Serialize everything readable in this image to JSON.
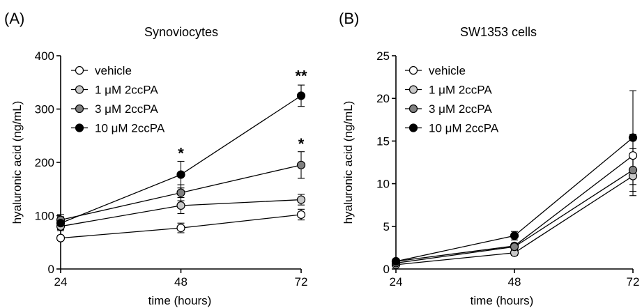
{
  "chart_data": [
    {
      "panel": "(A)",
      "type": "line",
      "title": "Synoviocytes",
      "xlabel": "time (hours)",
      "ylabel": "hyaluronic acid (ng/mL)",
      "x": [
        24,
        48,
        72
      ],
      "xticks": [
        24,
        48,
        72
      ],
      "ylim": [
        0,
        400
      ],
      "yticks": [
        0,
        100,
        200,
        300,
        400
      ],
      "grid": false,
      "legend": "top-left",
      "series": [
        {
          "name": "vehicle",
          "marker_fill": "#ffffff",
          "values": [
            58,
            77,
            102
          ],
          "errors": [
            5,
            9,
            10
          ]
        },
        {
          "name": "1 μM 2ccPA",
          "marker_fill": "#c8c8c8",
          "values": [
            80,
            119,
            130
          ],
          "errors": [
            8,
            15,
            10
          ]
        },
        {
          "name": "3 μM 2ccPA",
          "marker_fill": "#808080",
          "values": [
            92,
            143,
            195
          ],
          "errors": [
            10,
            15,
            25
          ]
        },
        {
          "name": "10 μM 2ccPA",
          "marker_fill": "#000000",
          "values": [
            86,
            177,
            325
          ],
          "errors": [
            12,
            25,
            20
          ]
        }
      ],
      "annotations": [
        {
          "x": 48,
          "y": 207,
          "text": "*"
        },
        {
          "x": 72,
          "y": 225,
          "text": "*"
        },
        {
          "x": 72,
          "y": 352,
          "text": "**"
        }
      ]
    },
    {
      "panel": "(B)",
      "type": "line",
      "title": "SW1353 cells",
      "xlabel": "time (hours)",
      "ylabel": "hyaluronic acid (ng/mL)",
      "x": [
        24,
        48,
        72
      ],
      "xticks": [
        24,
        48,
        72
      ],
      "ylim": [
        0,
        25
      ],
      "yticks": [
        0,
        5,
        10,
        15,
        20,
        25
      ],
      "grid": false,
      "legend": "top-left",
      "series": [
        {
          "name": "vehicle",
          "marker_fill": "#ffffff",
          "values": [
            0.9,
            2.7,
            13.3
          ],
          "errors": [
            0.2,
            0.3,
            2.5
          ]
        },
        {
          "name": "1 μM 2ccPA",
          "marker_fill": "#c8c8c8",
          "values": [
            0.5,
            1.9,
            10.9
          ],
          "errors": [
            0.2,
            0.3,
            2.3
          ]
        },
        {
          "name": "3 μM 2ccPA",
          "marker_fill": "#808080",
          "values": [
            0.7,
            2.6,
            11.6
          ],
          "errors": [
            0.2,
            0.3,
            2.5
          ]
        },
        {
          "name": "10 μM 2ccPA",
          "marker_fill": "#000000",
          "values": [
            0.9,
            3.9,
            15.4
          ],
          "errors": [
            0.2,
            0.5,
            5.5
          ]
        }
      ],
      "annotations": []
    }
  ]
}
